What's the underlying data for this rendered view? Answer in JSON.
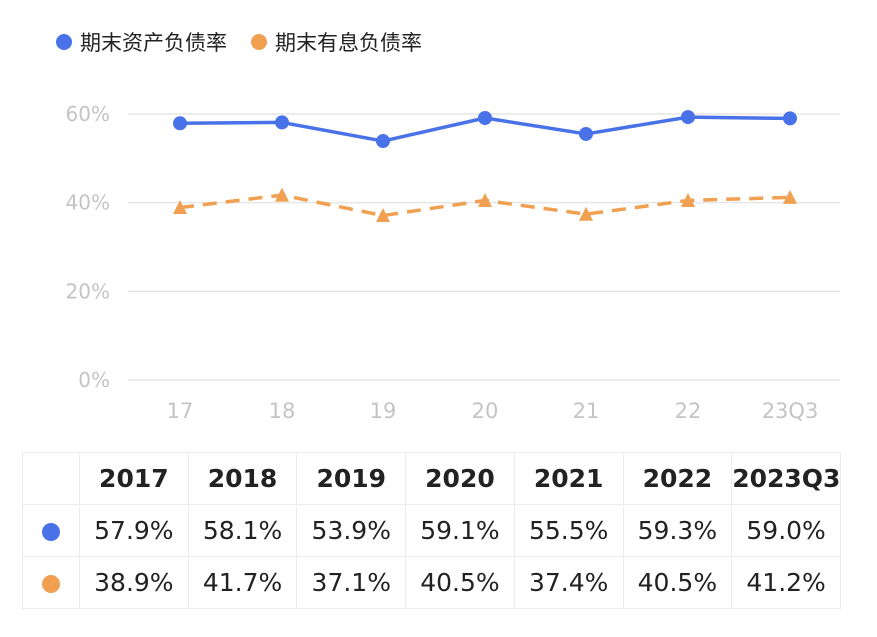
{
  "legend": [
    {
      "label": "期末资产负债率",
      "color": "#4A72E8"
    },
    {
      "label": "期末有息负债率",
      "color": "#F0A050"
    }
  ],
  "chart_data": {
    "type": "line",
    "categories": [
      "17",
      "18",
      "19",
      "20",
      "21",
      "22",
      "23Q3"
    ],
    "series": [
      {
        "name": "期末资产负债率",
        "values": [
          57.9,
          58.1,
          53.9,
          59.1,
          55.5,
          59.3,
          59.0
        ],
        "color": "#4A72E8",
        "style": "solid",
        "marker": "circle"
      },
      {
        "name": "期末有息负债率",
        "values": [
          38.9,
          41.7,
          37.1,
          40.5,
          37.4,
          40.5,
          41.2
        ],
        "color": "#F0A050",
        "style": "dashed",
        "marker": "triangle"
      }
    ],
    "yticks": [
      "0%",
      "20%",
      "40%",
      "60%"
    ],
    "ylim": [
      0,
      60
    ],
    "grid": true,
    "legend_position": "top-left"
  },
  "table": {
    "headers": [
      "2017",
      "2018",
      "2019",
      "2020",
      "2021",
      "2022",
      "2023Q3"
    ],
    "rows": [
      {
        "color": "#4A72E8",
        "cells": [
          "57.9%",
          "58.1%",
          "53.9%",
          "59.1%",
          "55.5%",
          "59.3%",
          "59.0%"
        ]
      },
      {
        "color": "#F0A050",
        "cells": [
          "38.9%",
          "41.7%",
          "37.1%",
          "40.5%",
          "37.4%",
          "40.5%",
          "41.2%"
        ]
      }
    ]
  }
}
